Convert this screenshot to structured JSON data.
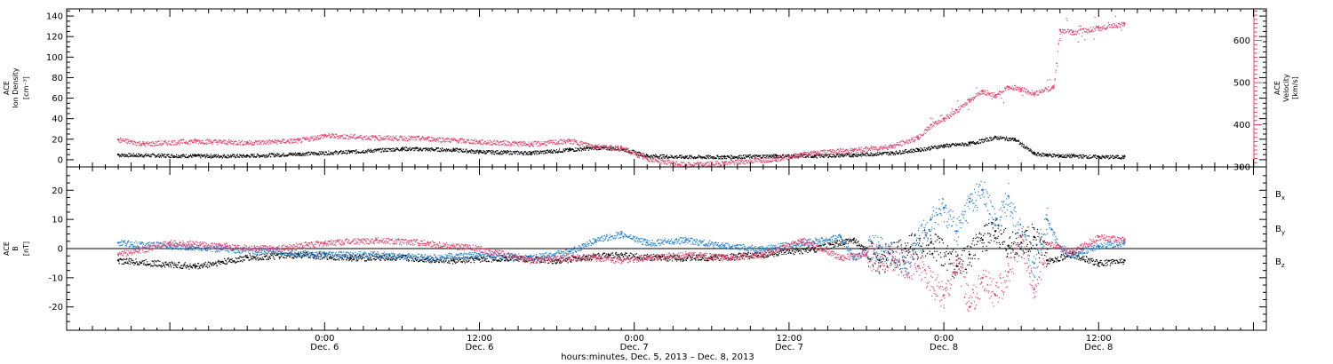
{
  "chart_data": [
    {
      "type": "scatter",
      "panel": "top",
      "ylabel_left": [
        "ACE",
        "Ion Density",
        "[cm⁻³]"
      ],
      "ylabel_right": [
        "ACE",
        "Velocity",
        "[km/s]"
      ],
      "ylim_left": [
        -7,
        147
      ],
      "ylim_right": [
        300,
        675
      ],
      "yticks_left": [
        0,
        20,
        40,
        60,
        80,
        100,
        120,
        140
      ],
      "yticks_right": [
        300,
        400,
        500,
        600
      ],
      "series": [
        {
          "name": "Ion Density",
          "axis": "left",
          "color": "#000000",
          "x": [
            -16,
            -10,
            -6,
            -2,
            2,
            6,
            10,
            12,
            16,
            19,
            21,
            23,
            25,
            28,
            31,
            35,
            38,
            41,
            44,
            46,
            48,
            50,
            52,
            53.5,
            55,
            56,
            57,
            58,
            60,
            62
          ],
          "y": [
            5,
            4,
            4,
            6,
            8,
            11,
            10,
            8,
            7,
            10,
            12,
            11,
            4,
            3,
            3,
            4,
            4,
            5,
            7,
            10,
            14,
            16,
            22,
            20,
            6,
            5,
            4,
            4,
            3,
            3
          ]
        },
        {
          "name": "Velocity",
          "axis": "right",
          "color": "#e8406a",
          "x": [
            -16,
            -14,
            -10,
            -6,
            -2,
            0,
            4,
            8,
            12,
            16,
            19,
            21,
            23,
            25,
            28,
            31,
            35,
            38,
            41,
            44,
            46,
            47,
            48,
            49,
            50,
            51,
            52,
            53,
            54,
            55,
            56.5,
            57,
            58,
            60,
            62
          ],
          "y": [
            365,
            355,
            362,
            358,
            363,
            375,
            370,
            368,
            360,
            355,
            362,
            350,
            345,
            320,
            305,
            310,
            320,
            335,
            340,
            350,
            370,
            400,
            415,
            435,
            460,
            480,
            470,
            490,
            485,
            475,
            490,
            625,
            620,
            630,
            640
          ]
        }
      ]
    },
    {
      "type": "scatter",
      "panel": "bottom",
      "ylabel_left": [
        "ACE",
        "B",
        "[nT]"
      ],
      "ylim": [
        -28,
        28
      ],
      "yticks": [
        -20,
        -10,
        0,
        10,
        20
      ],
      "legend": [
        "Bx",
        "By",
        "Bz"
      ],
      "legend_placement": "right",
      "series": [
        {
          "name": "Bx",
          "color": "#000000",
          "x": [
            -16,
            -10,
            -6,
            -2,
            2,
            6,
            10,
            14,
            18,
            22,
            26,
            30,
            34,
            38,
            41,
            43,
            45,
            47,
            49,
            50,
            51,
            52,
            53,
            54,
            55,
            56,
            58,
            60,
            62
          ],
          "y": [
            -4,
            -6,
            -3,
            -2,
            -3,
            -3,
            -4,
            -3,
            -4,
            -2,
            -3,
            -3,
            -2,
            0,
            3,
            -4,
            0,
            2,
            -6,
            -2,
            3,
            6,
            1,
            2,
            4,
            -4,
            -2,
            -5,
            -4
          ]
        },
        {
          "name": "By",
          "color": "#1e7fd6",
          "x": [
            -16,
            -12,
            -8,
            -4,
            0,
            4,
            8,
            12,
            16,
            19,
            21,
            23,
            25,
            28,
            31,
            34,
            37,
            40,
            41,
            43,
            45,
            47,
            48,
            49,
            50,
            51,
            52,
            53,
            54,
            55,
            56,
            57,
            58,
            60,
            62
          ],
          "y": [
            2,
            1,
            0,
            -1,
            -2,
            -2,
            -3,
            -2,
            -3,
            -1,
            3,
            5,
            2,
            3,
            1,
            0,
            2,
            4,
            -3,
            1,
            -5,
            10,
            14,
            6,
            16,
            20,
            8,
            18,
            4,
            -5,
            10,
            0,
            -2,
            1,
            2
          ]
        },
        {
          "name": "Bz",
          "color": "#e8406a",
          "x": [
            -16,
            -12,
            -8,
            -4,
            0,
            4,
            8,
            12,
            16,
            19,
            21,
            23,
            25,
            28,
            31,
            34,
            37,
            40,
            42,
            44,
            46,
            48,
            49,
            50,
            51,
            52,
            53,
            54,
            55,
            56,
            58,
            60,
            62
          ],
          "y": [
            -2,
            2,
            1,
            0,
            2,
            3,
            2,
            0,
            -4,
            -3,
            -3,
            -4,
            -3,
            -2,
            -3,
            -2,
            3,
            -3,
            -2,
            -4,
            -6,
            -16,
            -4,
            -20,
            -10,
            -16,
            -8,
            4,
            -14,
            2,
            -1,
            4,
            3
          ]
        }
      ]
    }
  ],
  "x_axis": {
    "xlim_hours": [
      -20,
      73
    ],
    "ticks": [
      {
        "hours": 0,
        "time": "0:00",
        "date": "Dec. 6"
      },
      {
        "hours": 12,
        "time": "12:00",
        "date": "Dec. 6"
      },
      {
        "hours": 24,
        "time": "0:00",
        "date": "Dec. 7"
      },
      {
        "hours": 36,
        "time": "12:00",
        "date": "Dec. 7"
      },
      {
        "hours": 48,
        "time": "0:00",
        "date": "Dec. 8"
      },
      {
        "hours": 60,
        "time": "12:00",
        "date": "Dec. 8"
      }
    ],
    "title": "hours:minutes, Dec.  5, 2013 – Dec.  8, 2013"
  }
}
